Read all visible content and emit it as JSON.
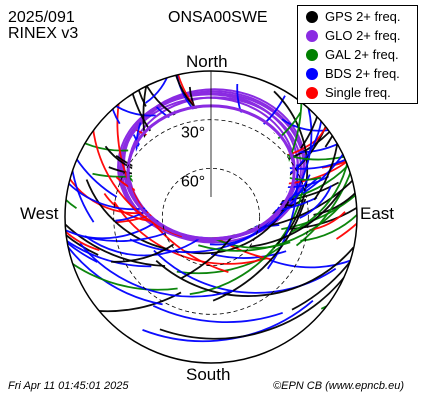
{
  "header": {
    "date": "2025/091",
    "format": "RINEX v3",
    "station": "ONSA00SWE"
  },
  "compass": {
    "north": "North",
    "south": "South",
    "east": "East",
    "west": "West"
  },
  "footer": {
    "timestamp": "Fri Apr 11 01:45:01 2025",
    "credit": "©EPN CB (www.epncb.eu)"
  },
  "colors": {
    "gps": "#000000",
    "glo": "#8a2be2",
    "gal": "#008000",
    "bds": "#0000ff",
    "single": "#ff0000"
  },
  "chart_data": {
    "type": "scatter",
    "projection": "polar skyplot (azimuth / elevation)",
    "elevation_rings": [
      {
        "value": 30,
        "label": "30°"
      },
      {
        "value": 60,
        "label": "60°"
      }
    ],
    "legend": [
      {
        "key": "gps",
        "label": "GPS 2+ freq."
      },
      {
        "key": "glo",
        "label": "GLO 2+ freq."
      },
      {
        "key": "gal",
        "label": "GAL 2+ freq."
      },
      {
        "key": "bds",
        "label": "BDS 2+ freq."
      },
      {
        "key": "single",
        "label": "Single freq."
      }
    ],
    "north_gap_elevation_deg": 40,
    "legend_placement": "top-right"
  }
}
